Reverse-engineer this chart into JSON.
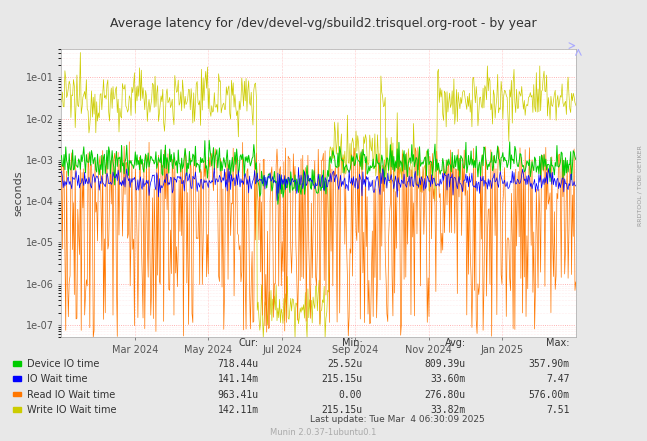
{
  "title": "Average latency for /dev/devel-vg/sbuild2.trisquel.org-root - by year",
  "ylabel": "seconds",
  "right_label": "RRDTOOL / TOBI OETIKER",
  "bg_color": "#e8e8e8",
  "plot_bg_color": "#ffffff",
  "legend": {
    "rows": [
      {
        "label": "Device IO time",
        "cur": "718.44u",
        "min": "25.52u",
        "avg": "809.39u",
        "max": "357.90m"
      },
      {
        "label": "IO Wait time",
        "cur": "141.14m",
        "min": "215.15u",
        "avg": "33.60m",
        "max": "7.47"
      },
      {
        "label": "Read IO Wait time",
        "cur": "963.41u",
        "min": "0.00",
        "avg": "276.80u",
        "max": "576.00m"
      },
      {
        "label": "Write IO Wait time",
        "cur": "142.11m",
        "min": "215.15u",
        "avg": "33.82m",
        "max": "7.51"
      }
    ]
  },
  "footer": "Last update: Tue Mar  4 06:30:09 2025",
  "munin_version": "Munin 2.0.37-1ubuntu0.1",
  "xaxis_labels": [
    "Mar 2024",
    "May 2024",
    "Jul 2024",
    "Sep 2024",
    "Nov 2024",
    "Jan 2025"
  ],
  "ylim_low": 5e-08,
  "ylim_high": 0.5,
  "colors": {
    "device": "#00cc00",
    "iowait": "#0000ff",
    "read": "#ff7700",
    "write": "#cccc00"
  },
  "title_fontsize": 9,
  "axis_fontsize": 7,
  "legend_fontsize": 7.5
}
